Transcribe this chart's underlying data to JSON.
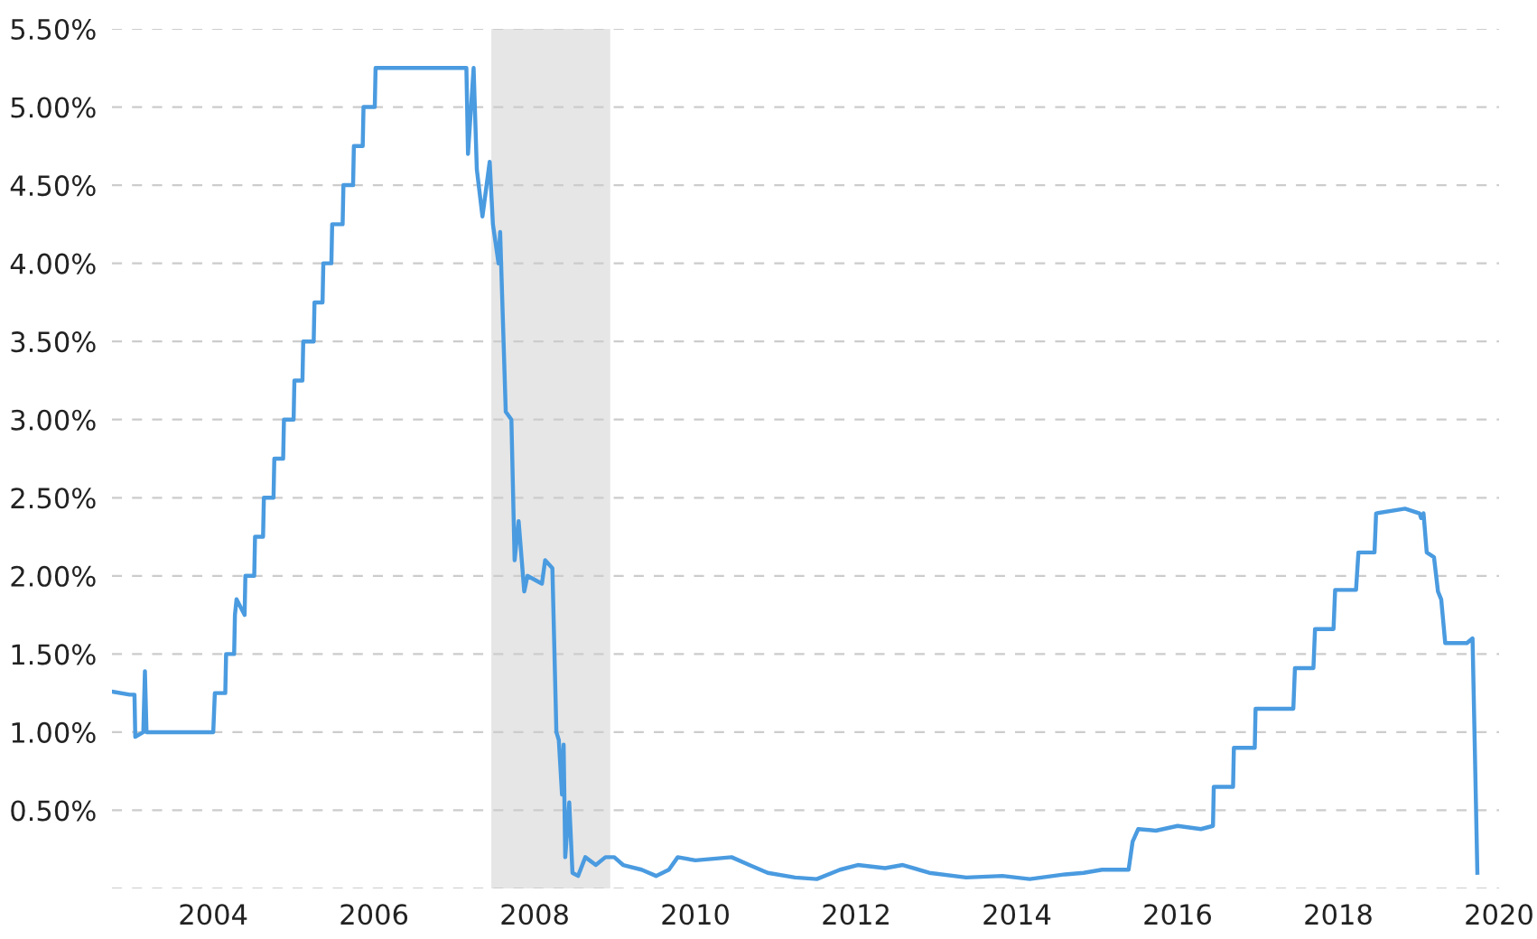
{
  "chart_data": {
    "type": "line",
    "x": [
      2002.74,
      2002.96,
      2003.02,
      2003.03,
      2003.13,
      2003.15,
      2003.17,
      2003.5,
      2004.0,
      2004.02,
      2004.15,
      2004.16,
      2004.26,
      2004.27,
      2004.29,
      2004.39,
      2004.4,
      2004.51,
      2004.52,
      2004.62,
      2004.63,
      2004.75,
      2004.76,
      2004.87,
      2004.88,
      2005.0,
      2005.01,
      2005.11,
      2005.12,
      2005.25,
      2005.26,
      2005.36,
      2005.37,
      2005.47,
      2005.48,
      2005.61,
      2005.62,
      2005.74,
      2005.75,
      2005.86,
      2005.87,
      2006.01,
      2006.02,
      2006.5,
      2007.15,
      2007.17,
      2007.24,
      2007.28,
      2007.35,
      2007.44,
      2007.48,
      2007.55,
      2007.57,
      2007.64,
      2007.71,
      2007.75,
      2007.8,
      2007.87,
      2007.91,
      2008.09,
      2008.13,
      2008.22,
      2008.27,
      2008.3,
      2008.34,
      2008.36,
      2008.38,
      2008.43,
      2008.47,
      2008.54,
      2008.63,
      2008.76,
      2008.88,
      2008.99,
      2009.1,
      2009.33,
      2009.51,
      2009.67,
      2009.78,
      2010.0,
      2010.45,
      2010.67,
      2010.9,
      2011.24,
      2011.51,
      2011.8,
      2012.02,
      2012.36,
      2012.58,
      2012.91,
      2013.37,
      2013.82,
      2014.16,
      2014.6,
      2014.83,
      2015.06,
      2015.39,
      2015.44,
      2015.51,
      2015.73,
      2016.0,
      2016.29,
      2016.44,
      2016.45,
      2016.69,
      2016.7,
      2016.96,
      2016.97,
      2017.44,
      2017.46,
      2017.69,
      2017.71,
      2017.94,
      2017.96,
      2018.22,
      2018.25,
      2018.45,
      2018.47,
      2018.83,
      2019.01,
      2019.03,
      2019.06,
      2019.1,
      2019.19,
      2019.24,
      2019.28,
      2019.33,
      2019.6,
      2019.67,
      2019.69,
      2019.73
    ],
    "series": [
      {
        "color": "#4a9be0",
        "values": [
          1.26,
          1.24,
          1.24,
          0.97,
          1.0,
          1.39,
          1.0,
          1.0,
          1.0,
          1.25,
          1.25,
          1.5,
          1.5,
          1.75,
          1.85,
          1.75,
          2.0,
          2.0,
          2.25,
          2.25,
          2.5,
          2.5,
          2.75,
          2.75,
          3.0,
          3.0,
          3.25,
          3.25,
          3.5,
          3.5,
          3.75,
          3.75,
          4.0,
          4.0,
          4.25,
          4.25,
          4.5,
          4.5,
          4.75,
          4.75,
          5.0,
          5.0,
          5.25,
          5.25,
          5.25,
          4.7,
          5.25,
          4.6,
          4.3,
          4.65,
          4.25,
          4.0,
          4.2,
          3.05,
          3.0,
          2.1,
          2.35,
          1.9,
          2.0,
          1.95,
          2.1,
          2.05,
          1.0,
          0.95,
          0.6,
          0.92,
          0.2,
          0.55,
          0.1,
          0.08,
          0.2,
          0.15,
          0.2,
          0.2,
          0.15,
          0.12,
          0.08,
          0.12,
          0.2,
          0.18,
          0.2,
          0.15,
          0.1,
          0.07,
          0.06,
          0.12,
          0.15,
          0.13,
          0.15,
          0.1,
          0.07,
          0.08,
          0.06,
          0.09,
          0.1,
          0.12,
          0.12,
          0.3,
          0.38,
          0.37,
          0.4,
          0.38,
          0.4,
          0.65,
          0.65,
          0.9,
          0.9,
          1.15,
          1.15,
          1.41,
          1.41,
          1.66,
          1.66,
          1.91,
          1.91,
          2.15,
          2.15,
          2.4,
          2.43,
          2.4,
          2.37,
          2.4,
          2.15,
          2.12,
          1.9,
          1.85,
          1.57,
          1.57,
          1.6,
          1.1,
          0.1
        ]
      }
    ],
    "xlim": [
      2002.74,
      2020
    ],
    "xticks": [
      2004,
      2006,
      2008,
      2010,
      2012,
      2014,
      2016,
      2018,
      2020
    ],
    "ylim": [
      0,
      5.5
    ],
    "yticks": [
      {
        "value": 0,
        "label": null
      },
      {
        "value": 0.5,
        "label": "0.50%"
      },
      {
        "value": 1.0,
        "label": "1.00%"
      },
      {
        "value": 1.5,
        "label": "1.50%"
      },
      {
        "value": 2.0,
        "label": "2.00%"
      },
      {
        "value": 2.5,
        "label": "2.50%"
      },
      {
        "value": 3.0,
        "label": "3.00%"
      },
      {
        "value": 3.5,
        "label": "3.50%"
      },
      {
        "value": 4.0,
        "label": "4.00%"
      },
      {
        "value": 4.5,
        "label": "4.50%"
      },
      {
        "value": 5.0,
        "label": "5.00%"
      },
      {
        "value": 5.5,
        "label": "5.50%"
      }
    ],
    "bands": [
      {
        "axis": "x",
        "from": 2007.46,
        "to": 2008.94,
        "color": "#e6e6e6"
      }
    ],
    "grid": "y",
    "marker": "none",
    "line_style": "solid",
    "legend": false
  }
}
